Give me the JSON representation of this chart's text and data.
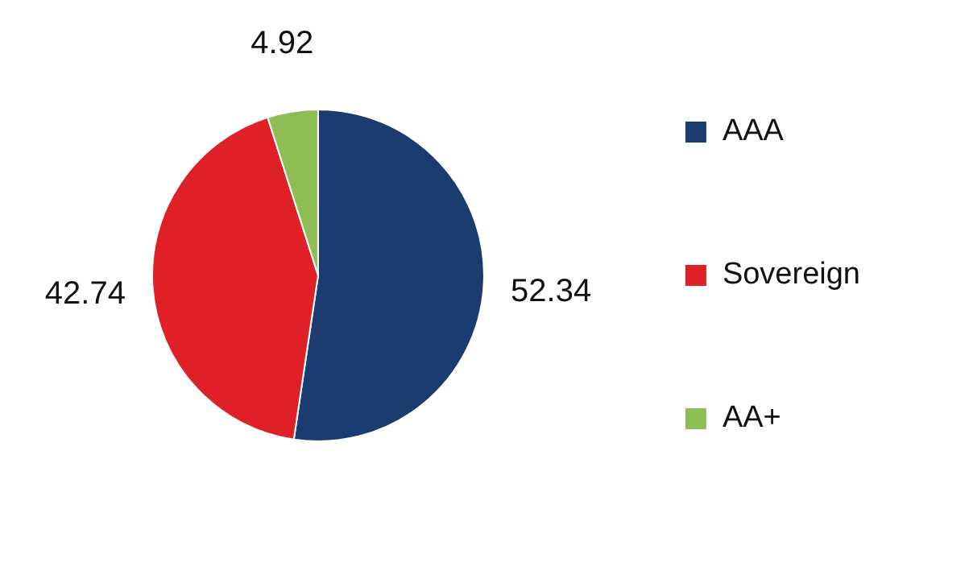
{
  "chart_data": {
    "type": "pie",
    "categories": [
      "AAA",
      "Sovereign",
      "AA+"
    ],
    "values": [
      52.34,
      42.74,
      4.92
    ],
    "colors": [
      "#1a3c6e",
      "#e02027",
      "#8fbd55"
    ],
    "legend": "right",
    "data_labels": true
  }
}
